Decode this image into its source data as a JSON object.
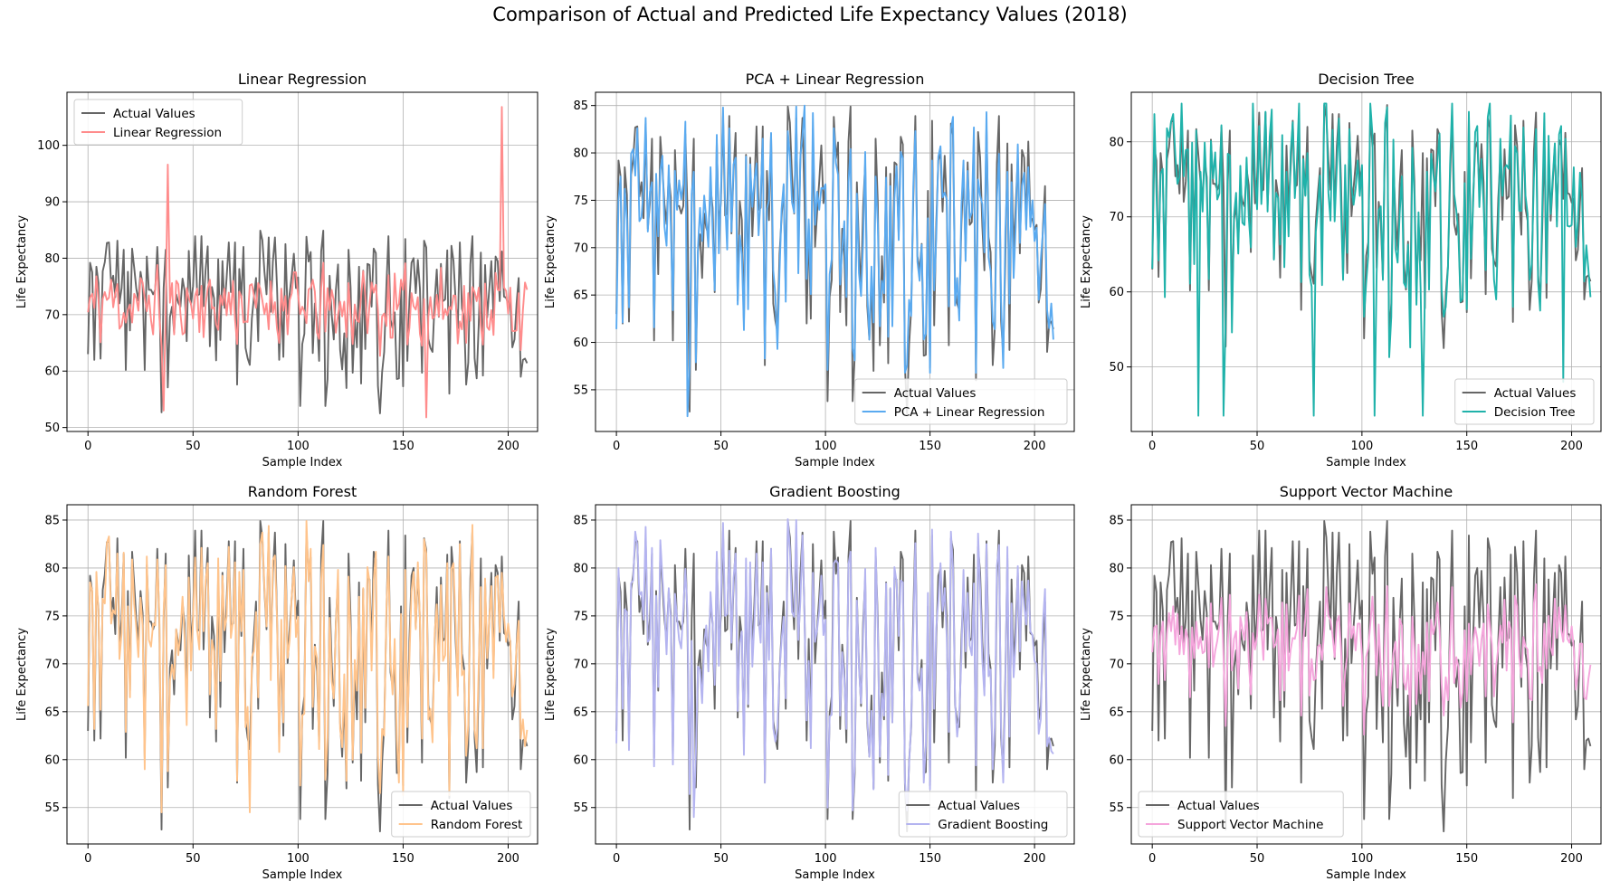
{
  "figure": {
    "title": "Comparison of Actual and Predicted Life Expectancy Values (2018)"
  },
  "chart_data": [
    {
      "type": "line",
      "title": "Linear Regression",
      "xlabel": "Sample Index",
      "ylabel": "Life Expectancy",
      "xlim": [
        -10,
        214
      ],
      "ylim": [
        49.3,
        109.4
      ],
      "xticks": [
        0,
        50,
        100,
        150,
        200
      ],
      "yticks": [
        50,
        60,
        70,
        80,
        90,
        100
      ],
      "grid": true,
      "legend": "upper left",
      "series": [
        {
          "name": "Actual Values",
          "color": "#666666",
          "role": "actual"
        },
        {
          "name": "Linear Regression",
          "color": "#ff8c8c",
          "role": "prediction",
          "spikes": [
            [
              38,
              96.6
            ],
            [
              197,
              106.8
            ],
            [
              36,
              53.0
            ],
            [
              161,
              51.8
            ]
          ]
        }
      ],
      "predictionStyle": {
        "seed": 11,
        "spread": 0.15,
        "noise": 6,
        "center": 71.5,
        "mix": 0.15
      }
    },
    {
      "type": "line",
      "title": "PCA + Linear Regression",
      "xlabel": "Sample Index",
      "ylabel": "Life Expectancy",
      "xlim": [
        -10,
        219
      ],
      "ylim": [
        50.6,
        86.4
      ],
      "xticks": [
        0,
        50,
        100,
        150,
        200
      ],
      "yticks": [
        55,
        60,
        65,
        70,
        75,
        80,
        85
      ],
      "grid": true,
      "legend": "lower right",
      "series": [
        {
          "name": "Actual Values",
          "color": "#666666",
          "role": "actual"
        },
        {
          "name": "PCA + Linear Regression",
          "color": "#5aaaf0",
          "role": "prediction",
          "spikes": [
            [
              34,
              52.2
            ],
            [
              90,
              85.0
            ]
          ]
        }
      ],
      "predictionStyle": {
        "seed": 23,
        "spread": 0.85,
        "noise": 3.5,
        "center": 71.5,
        "mix": 0.6
      }
    },
    {
      "type": "line",
      "title": "Decision Tree",
      "xlabel": "Sample Index",
      "ylabel": "Life Expectancy",
      "xlim": [
        -10,
        214
      ],
      "ylim": [
        41.4,
        86.6
      ],
      "xticks": [
        0,
        50,
        100,
        150,
        200
      ],
      "yticks": [
        50,
        60,
        70,
        80
      ],
      "grid": true,
      "legend": "lower right",
      "series": [
        {
          "name": "Actual Values",
          "color": "#666666",
          "role": "actual"
        },
        {
          "name": "Decision Tree",
          "color": "#20b2aa",
          "role": "prediction",
          "spikes": [
            [
              22,
              43.5
            ],
            [
              34,
              43.5
            ],
            [
              77,
              43.5
            ],
            [
              106,
              43.5
            ],
            [
              129,
              43.5
            ],
            [
              196,
              48.0
            ]
          ]
        }
      ],
      "predictionStyle": {
        "seed": 37,
        "spread": 1.0,
        "noise": 4.5,
        "center": 71.5,
        "mix": 0.85
      }
    },
    {
      "type": "line",
      "title": "Random Forest",
      "xlabel": "Sample Index",
      "ylabel": "Life Expectancy",
      "xlim": [
        -10,
        214
      ],
      "ylim": [
        51.2,
        86.6
      ],
      "xticks": [
        0,
        50,
        100,
        150,
        200
      ],
      "yticks": [
        55,
        60,
        65,
        70,
        75,
        80,
        85
      ],
      "grid": true,
      "legend": "lower right",
      "series": [
        {
          "name": "Actual Values",
          "color": "#666666",
          "role": "actual"
        },
        {
          "name": "Random Forest",
          "color": "#ffc48c",
          "role": "prediction",
          "spikes": [
            [
              35,
              54.5
            ],
            [
              77,
              54.5
            ]
          ]
        }
      ],
      "predictionStyle": {
        "seed": 41,
        "spread": 0.9,
        "noise": 2.5,
        "center": 71.5,
        "mix": 0.8
      }
    },
    {
      "type": "line",
      "title": "Gradient Boosting",
      "xlabel": "Sample Index",
      "ylabel": "Life Expectancy",
      "xlim": [
        -10,
        219
      ],
      "ylim": [
        51.2,
        86.6
      ],
      "xticks": [
        0,
        50,
        100,
        150,
        200
      ],
      "yticks": [
        55,
        60,
        65,
        70,
        75,
        80,
        85
      ],
      "grid": true,
      "legend": "lower right",
      "series": [
        {
          "name": "Actual Values",
          "color": "#666666",
          "role": "actual"
        },
        {
          "name": "Gradient Boosting",
          "color": "#b4b4f0",
          "role": "prediction",
          "spikes": [
            [
              37,
              54.0
            ]
          ]
        }
      ],
      "predictionStyle": {
        "seed": 53,
        "spread": 0.9,
        "noise": 2.5,
        "center": 71.5,
        "mix": 0.8
      }
    },
    {
      "type": "line",
      "title": "Support Vector Machine",
      "xlabel": "Sample Index",
      "ylabel": "Life Expectancy",
      "xlim": [
        -10,
        214
      ],
      "ylim": [
        51.2,
        86.6
      ],
      "xticks": [
        0,
        50,
        100,
        150,
        200
      ],
      "yticks": [
        55,
        60,
        65,
        70,
        75,
        80,
        85
      ],
      "grid": true,
      "legend": "lower left",
      "series": [
        {
          "name": "Actual Values",
          "color": "#666666",
          "role": "actual"
        },
        {
          "name": "Support Vector Machine",
          "color": "#f5a5dc",
          "role": "prediction",
          "spikes": []
        }
      ],
      "predictionStyle": {
        "seed": 67,
        "spread": 0.35,
        "noise": 2.8,
        "center": 71.5,
        "mix": 0.35
      }
    }
  ],
  "actual_values": {
    "n": 210,
    "seed": 7,
    "anchors": [
      [
        0,
        63.0
      ],
      [
        1,
        79.2
      ],
      [
        2,
        77.5
      ],
      [
        3,
        62.0
      ],
      [
        4,
        78.5
      ],
      [
        9,
        82.7
      ],
      [
        17,
        81.5
      ],
      [
        18,
        60.2
      ],
      [
        33,
        82.0
      ],
      [
        35,
        52.7
      ],
      [
        37,
        81.5
      ],
      [
        48,
        81.3
      ],
      [
        67,
        82.8
      ],
      [
        74,
        82.0
      ],
      [
        82,
        84.9
      ],
      [
        89,
        83.7
      ],
      [
        94,
        82.5
      ],
      [
        101,
        53.8
      ],
      [
        112,
        84.9
      ],
      [
        113,
        53.8
      ],
      [
        139,
        52.5
      ],
      [
        160,
        83.1
      ],
      [
        172,
        56.0
      ],
      [
        177,
        82.8
      ],
      [
        183,
        83.9
      ],
      [
        197,
        81.2
      ],
      [
        207,
        62.0
      ],
      [
        209,
        61.4
      ]
    ]
  }
}
